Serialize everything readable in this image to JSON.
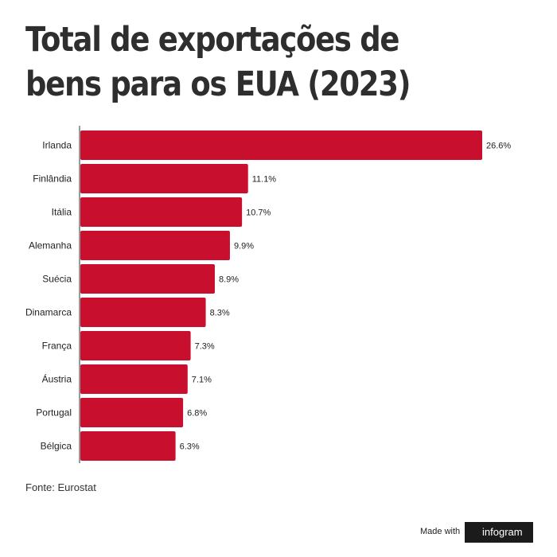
{
  "title": "Total de exportações de bens para os EUA (2023)",
  "source": "Fonte: Eurostat",
  "footer": {
    "made_with": "Made with",
    "brand": "infogram"
  },
  "colors": {
    "bar": "#c8102e",
    "axis": "#333333",
    "text": "#222222"
  },
  "chart_data": {
    "type": "bar",
    "orientation": "horizontal",
    "categories": [
      "Irlanda",
      "Finlândia",
      "Itália",
      "Alemanha",
      "Suécia",
      "Dinamarca",
      "França",
      "Áustria",
      "Portugal",
      "Bélgica"
    ],
    "values": [
      26.6,
      11.1,
      10.7,
      9.9,
      8.9,
      8.3,
      7.3,
      7.1,
      6.8,
      6.3
    ],
    "value_labels": [
      "26.6%",
      "11.1%",
      "10.7%",
      "9.9%",
      "8.9%",
      "8.3%",
      "7.3%",
      "7.1%",
      "6.8%",
      "6.3%"
    ],
    "unit": "%",
    "xlim": [
      0,
      26.6
    ],
    "grid": false,
    "legend": "none"
  }
}
